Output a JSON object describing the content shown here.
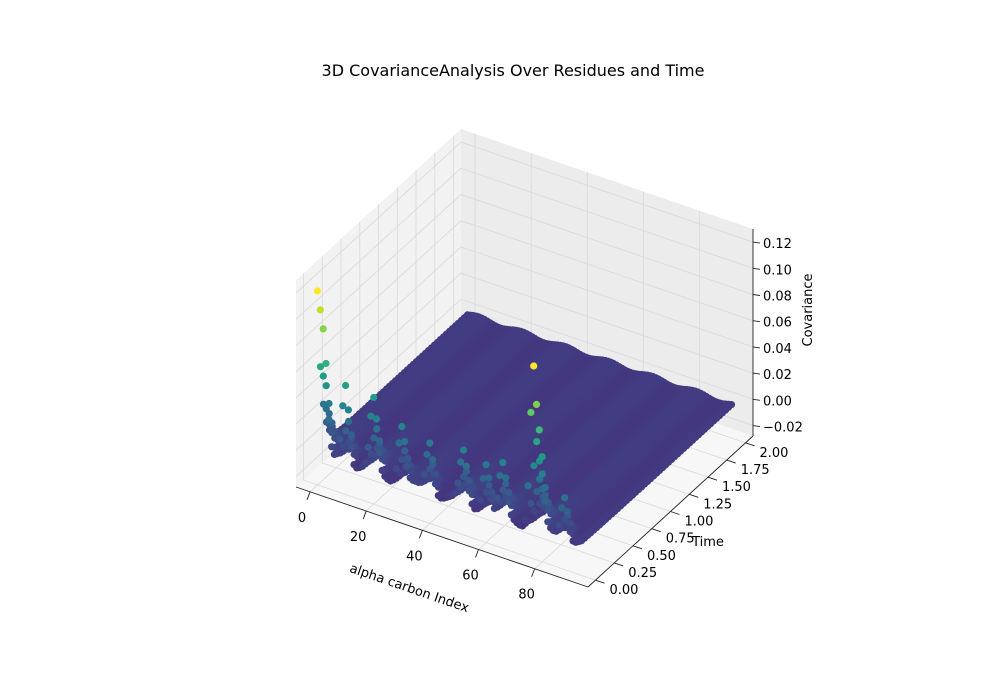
{
  "chart_data": {
    "type": "scatter",
    "projection": "3d",
    "title": "3D CovarianceAnalysis Over Residues and Time",
    "xlabel": "alpha carbon Index",
    "ylabel": "Time",
    "zlabel": "Covariance",
    "xlim": [
      -5,
      99
    ],
    "ylim": [
      -0.1,
      2.1
    ],
    "zlim": [
      -0.028,
      0.13
    ],
    "x_ticks": [
      "0",
      "20",
      "40",
      "60",
      "80"
    ],
    "y_ticks": [
      "0.00",
      "0.25",
      "0.50",
      "0.75",
      "1.00",
      "1.25",
      "1.50",
      "1.75",
      "2.00"
    ],
    "z_ticks": [
      "−0.02",
      "0.00",
      "0.02",
      "0.04",
      "0.06",
      "0.08",
      "0.10",
      "0.12"
    ],
    "colormap": "viridis",
    "grid": true,
    "residues": [
      0,
      94
    ],
    "time_range": [
      0,
      2
    ],
    "base_covariance": -0.003,
    "peaks": [
      {
        "residue": 0,
        "time": 0.1,
        "covariance": 0.12
      },
      {
        "residue": 1,
        "time": 0.1,
        "covariance": 0.105
      },
      {
        "residue": 2,
        "time": 0.1,
        "covariance": 0.09
      },
      {
        "residue": 10,
        "time": 0.1,
        "covariance": 0.058
      },
      {
        "residue": 20,
        "time": 0.1,
        "covariance": 0.05
      },
      {
        "residue": 30,
        "time": 0.1,
        "covariance": 0.04
      },
      {
        "residue": 40,
        "time": 0.1,
        "covariance": 0.035
      },
      {
        "residue": 52,
        "time": 0.1,
        "covariance": 0.034
      },
      {
        "residue": 60,
        "time": 0.1,
        "covariance": 0.034
      },
      {
        "residue": 66,
        "time": 0.1,
        "covariance": 0.034
      },
      {
        "residue": 77,
        "time": 0.1,
        "covariance": 0.12
      },
      {
        "residue": 78,
        "time": 0.1,
        "covariance": 0.09
      },
      {
        "residue": 79,
        "time": 0.1,
        "covariance": 0.07
      },
      {
        "residue": 88,
        "time": 0.1,
        "covariance": 0.03
      }
    ]
  }
}
